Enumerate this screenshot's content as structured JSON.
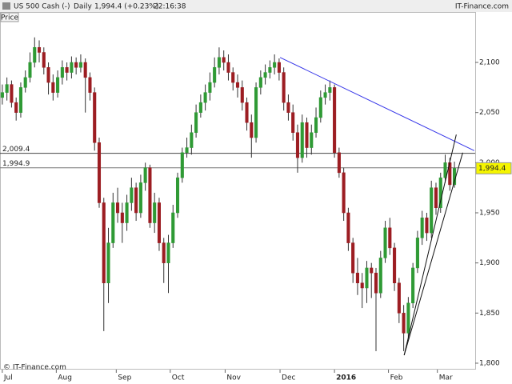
{
  "chart_data": {
    "type": "candlestick",
    "title": "US 500 Cash (-)",
    "period": "Daily",
    "quote": "1,994.4 (+0.23%)",
    "time": "22:16:38",
    "source": "IT-Finance.com",
    "copyright": "© IT-Finance.com",
    "ylabel": "Price",
    "open": [
      2065,
      2070,
      2078,
      2060,
      2050,
      2075,
      2085,
      2100,
      2115,
      2110,
      2095,
      2080,
      2070,
      2085,
      2095,
      2090,
      2100,
      2095,
      2100,
      2085,
      2070,
      2020,
      1960,
      1880,
      1920,
      1960,
      1950,
      1940,
      1960,
      1975,
      1950,
      1980,
      1995,
      1940,
      1960,
      1920,
      1900,
      1920,
      1950,
      1985,
      2010,
      2015,
      2030,
      2050,
      2060,
      2070,
      2080,
      2095,
      2105,
      2100,
      2090,
      2080,
      2075,
      2060,
      2040,
      2025,
      2075,
      2085,
      2090,
      2095,
      2100,
      2090,
      2060,
      2050,
      2030,
      2005,
      2040,
      2015,
      2030,
      2045,
      2065,
      2070,
      2075,
      2010,
      1990,
      1950,
      1920,
      1890,
      1880,
      1875,
      1895,
      1890,
      1870,
      1905,
      1935,
      1915,
      1880,
      1850,
      1830,
      1860,
      1895,
      1925,
      1945,
      1930,
      1975,
      1955,
      1985,
      2000,
      1978
    ],
    "high": [
      2078,
      2085,
      2082,
      2065,
      2080,
      2092,
      2110,
      2125,
      2122,
      2115,
      2100,
      2088,
      2092,
      2102,
      2100,
      2106,
      2105,
      2108,
      2104,
      2090,
      2075,
      2025,
      1965,
      1935,
      1970,
      1975,
      1960,
      1968,
      1985,
      1980,
      1988,
      2000,
      1998,
      1970,
      1965,
      1925,
      1928,
      1958,
      1990,
      2015,
      2025,
      2038,
      2058,
      2068,
      2078,
      2090,
      2105,
      2115,
      2112,
      2108,
      2095,
      2088,
      2082,
      2065,
      2048,
      2080,
      2092,
      2098,
      2102,
      2108,
      2104,
      2095,
      2068,
      2058,
      2038,
      2048,
      2045,
      2038,
      2055,
      2072,
      2078,
      2082,
      2078,
      2015,
      1995,
      1955,
      1925,
      1905,
      1890,
      1902,
      1900,
      1895,
      1912,
      1942,
      1945,
      1920,
      1885,
      1858,
      1866,
      1900,
      1932,
      1952,
      1950,
      1982,
      1980,
      1990,
      2008,
      2005,
      2001
    ],
    "low": [
      2058,
      2062,
      2055,
      2042,
      2045,
      2070,
      2080,
      2095,
      2100,
      2088,
      2068,
      2062,
      2065,
      2078,
      2082,
      2084,
      2088,
      2090,
      2050,
      2062,
      2012,
      1955,
      1832,
      1860,
      1915,
      1940,
      1920,
      1932,
      1952,
      1942,
      1945,
      1972,
      1935,
      1930,
      1912,
      1880,
      1870,
      1915,
      1945,
      1980,
      2005,
      2008,
      2025,
      2045,
      2052,
      2062,
      2075,
      2088,
      2092,
      2082,
      2072,
      2065,
      2052,
      2032,
      2005,
      2020,
      2068,
      2078,
      2084,
      2088,
      2082,
      2052,
      2042,
      2022,
      1990,
      2000,
      2005,
      2008,
      2025,
      2040,
      2058,
      2062,
      2005,
      1985,
      1942,
      1912,
      1880,
      1868,
      1855,
      1860,
      1865,
      1812,
      1865,
      1900,
      1908,
      1872,
      1840,
      1812,
      1825,
      1855,
      1890,
      1918,
      1922,
      1925,
      1948,
      1950,
      1980,
      1972,
      1975
    ],
    "close": [
      2070,
      2078,
      2060,
      2050,
      2075,
      2085,
      2100,
      2115,
      2110,
      2095,
      2080,
      2070,
      2085,
      2095,
      2090,
      2100,
      2095,
      2100,
      2085,
      2070,
      2020,
      1960,
      1880,
      1920,
      1960,
      1950,
      1940,
      1960,
      1975,
      1950,
      1980,
      1995,
      1940,
      1960,
      1920,
      1900,
      1920,
      1950,
      1985,
      2010,
      2015,
      2030,
      2050,
      2060,
      2070,
      2080,
      2095,
      2105,
      2100,
      2090,
      2080,
      2075,
      2060,
      2040,
      2025,
      2075,
      2085,
      2090,
      2095,
      2100,
      2090,
      2060,
      2050,
      2030,
      2005,
      2040,
      2015,
      2030,
      2045,
      2065,
      2070,
      2075,
      2010,
      1990,
      1950,
      1920,
      1890,
      1880,
      1875,
      1895,
      1890,
      1870,
      1905,
      1935,
      1915,
      1880,
      1850,
      1830,
      1860,
      1895,
      1925,
      1945,
      1930,
      1975,
      1955,
      1985,
      2000,
      1978,
      1994.4
    ],
    "up_color": "#2f9a35",
    "down_color": "#9c1d22",
    "wick_color": "#333333",
    "xlim": [
      -0.5,
      102.5
    ],
    "ylim": [
      1793.6,
      2150.3
    ],
    "xticks": [
      {
        "value": 0,
        "label": "Jul"
      },
      {
        "value": 11.7,
        "label": "Aug"
      },
      {
        "value": 24.7,
        "label": "Sep"
      },
      {
        "value": 36.4,
        "label": "Oct"
      },
      {
        "value": 48.3,
        "label": "Nov"
      },
      {
        "value": 60.2,
        "label": "Dec"
      },
      {
        "value": 72,
        "label": "2016"
      },
      {
        "value": 83.7,
        "label": "Feb"
      },
      {
        "value": 94.3,
        "label": "Mar"
      }
    ],
    "yticks": [
      {
        "value": 1800,
        "label": "1,800"
      },
      {
        "value": 1850,
        "label": "1,850"
      },
      {
        "value": 1900,
        "label": "1,900"
      },
      {
        "value": 1950,
        "label": "1,950"
      },
      {
        "value": 2000,
        "label": "2,000"
      },
      {
        "value": 2050,
        "label": "2,050"
      },
      {
        "value": 2100,
        "label": "2,100"
      }
    ],
    "levels": [
      {
        "value": 2009.4,
        "label": "2,009.4",
        "color": "#444444"
      },
      {
        "value": 1994.9,
        "label": "1,994.9",
        "color": "#777777"
      }
    ],
    "trendlines": [
      {
        "color": "#3535e8",
        "x": [
          60.2,
          102.3
        ],
        "y": [
          2105,
          2012
        ]
      },
      {
        "color": "#111111",
        "x": [
          87.1,
          98.4
        ],
        "y": [
          1808,
          2028
        ]
      },
      {
        "color": "#111111",
        "x": [
          87.1,
          99.8
        ],
        "y": [
          1808,
          2010
        ]
      }
    ],
    "price_tag": {
      "value": 1994.4,
      "label": "1,994.4",
      "color": "#f5f500"
    }
  }
}
